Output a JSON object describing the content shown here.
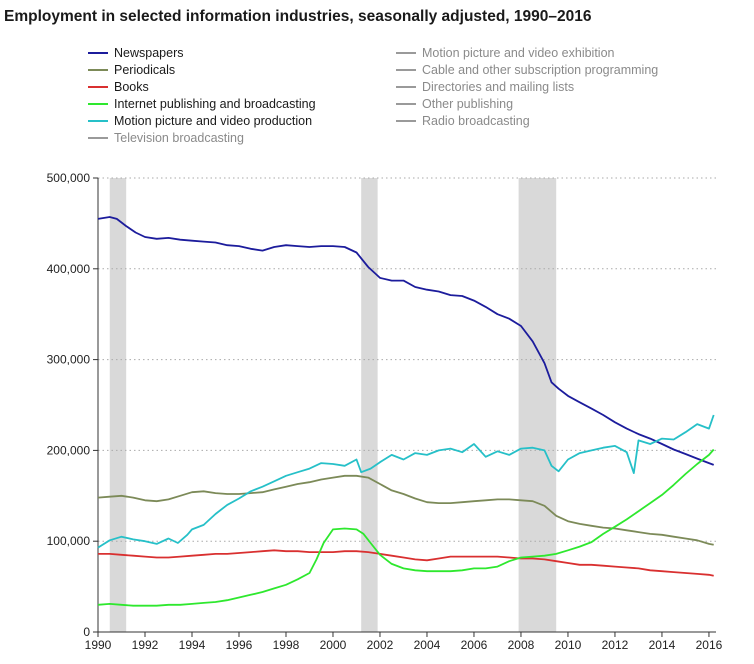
{
  "chart_data": {
    "type": "line",
    "title": "Employment in selected information industries, seasonally adjusted, 1990–2016",
    "xlabel": "",
    "ylabel": "",
    "xlim": [
      1990,
      2016.3
    ],
    "ylim": [
      0,
      500000
    ],
    "x_ticks": [
      1990,
      1992,
      1994,
      1996,
      1998,
      2000,
      2002,
      2004,
      2006,
      2008,
      2010,
      2012,
      2014,
      2016
    ],
    "y_ticks": [
      0,
      100000,
      200000,
      300000,
      400000,
      500000
    ],
    "y_tick_labels": [
      "0",
      "100,000",
      "200,000",
      "300,000",
      "400,000",
      "500,000"
    ],
    "grid": "horizontal dotted",
    "legend_position": "top",
    "recession_shading": [
      [
        1990.5,
        1991.2
      ],
      [
        2001.2,
        2001.9
      ],
      [
        2007.9,
        2009.5
      ]
    ],
    "series": [
      {
        "name": "Newspapers",
        "color": "#1c1c9c",
        "points": [
          [
            1990,
            455000
          ],
          [
            1990.5,
            457000
          ],
          [
            1990.8,
            455000
          ],
          [
            1991.2,
            447000
          ],
          [
            1991.6,
            440000
          ],
          [
            1992,
            435000
          ],
          [
            1992.5,
            433000
          ],
          [
            1993,
            434000
          ],
          [
            1993.5,
            432000
          ],
          [
            1994,
            431000
          ],
          [
            1994.5,
            430000
          ],
          [
            1995,
            429000
          ],
          [
            1995.5,
            426000
          ],
          [
            1996,
            425000
          ],
          [
            1996.5,
            422000
          ],
          [
            1997,
            420000
          ],
          [
            1997.5,
            424000
          ],
          [
            1998,
            426000
          ],
          [
            1998.5,
            425000
          ],
          [
            1999,
            424000
          ],
          [
            1999.5,
            425000
          ],
          [
            2000,
            425000
          ],
          [
            2000.5,
            424000
          ],
          [
            2001,
            418000
          ],
          [
            2001.5,
            402000
          ],
          [
            2002,
            390000
          ],
          [
            2002.5,
            387000
          ],
          [
            2003,
            387000
          ],
          [
            2003.5,
            380000
          ],
          [
            2004,
            377000
          ],
          [
            2004.5,
            375000
          ],
          [
            2005,
            371000
          ],
          [
            2005.5,
            370000
          ],
          [
            2006,
            365000
          ],
          [
            2006.5,
            358000
          ],
          [
            2007,
            350000
          ],
          [
            2007.5,
            345000
          ],
          [
            2008,
            337000
          ],
          [
            2008.5,
            320000
          ],
          [
            2009,
            296000
          ],
          [
            2009.3,
            275000
          ],
          [
            2009.6,
            268000
          ],
          [
            2010,
            260000
          ],
          [
            2010.5,
            253000
          ],
          [
            2011,
            246000
          ],
          [
            2011.5,
            239000
          ],
          [
            2012,
            231000
          ],
          [
            2012.5,
            224000
          ],
          [
            2013,
            218000
          ],
          [
            2013.5,
            213000
          ],
          [
            2014,
            207000
          ],
          [
            2014.5,
            201000
          ],
          [
            2015,
            196000
          ],
          [
            2015.5,
            191000
          ],
          [
            2016,
            186000
          ],
          [
            2016.2,
            184000
          ]
        ]
      },
      {
        "name": "Periodicals",
        "color": "#7c8a58",
        "points": [
          [
            1990,
            148000
          ],
          [
            1990.5,
            149000
          ],
          [
            1991,
            150000
          ],
          [
            1991.5,
            148000
          ],
          [
            1992,
            145000
          ],
          [
            1992.5,
            144000
          ],
          [
            1993,
            146000
          ],
          [
            1993.5,
            150000
          ],
          [
            1994,
            154000
          ],
          [
            1994.5,
            155000
          ],
          [
            1995,
            153000
          ],
          [
            1995.5,
            152000
          ],
          [
            1996,
            152000
          ],
          [
            1996.5,
            153000
          ],
          [
            1997,
            154000
          ],
          [
            1997.5,
            157000
          ],
          [
            1998,
            160000
          ],
          [
            1998.5,
            163000
          ],
          [
            1999,
            165000
          ],
          [
            1999.5,
            168000
          ],
          [
            2000,
            170000
          ],
          [
            2000.5,
            172000
          ],
          [
            2001,
            172000
          ],
          [
            2001.5,
            170000
          ],
          [
            2002,
            163000
          ],
          [
            2002.5,
            156000
          ],
          [
            2003,
            152000
          ],
          [
            2003.5,
            147000
          ],
          [
            2004,
            143000
          ],
          [
            2004.5,
            142000
          ],
          [
            2005,
            142000
          ],
          [
            2005.5,
            143000
          ],
          [
            2006,
            144000
          ],
          [
            2006.5,
            145000
          ],
          [
            2007,
            146000
          ],
          [
            2007.5,
            146000
          ],
          [
            2008,
            145000
          ],
          [
            2008.5,
            144000
          ],
          [
            2009,
            139000
          ],
          [
            2009.5,
            128000
          ],
          [
            2010,
            122000
          ],
          [
            2010.5,
            119000
          ],
          [
            2011,
            117000
          ],
          [
            2011.5,
            115000
          ],
          [
            2012,
            114000
          ],
          [
            2012.5,
            112000
          ],
          [
            2013,
            110000
          ],
          [
            2013.5,
            108000
          ],
          [
            2014,
            107000
          ],
          [
            2014.5,
            105000
          ],
          [
            2015,
            103000
          ],
          [
            2015.5,
            101000
          ],
          [
            2016,
            97000
          ],
          [
            2016.2,
            96000
          ]
        ]
      },
      {
        "name": "Books",
        "color": "#d93030",
        "points": [
          [
            1990,
            86000
          ],
          [
            1990.5,
            86000
          ],
          [
            1991,
            85000
          ],
          [
            1991.5,
            84000
          ],
          [
            1992,
            83000
          ],
          [
            1992.5,
            82000
          ],
          [
            1993,
            82000
          ],
          [
            1993.5,
            83000
          ],
          [
            1994,
            84000
          ],
          [
            1994.5,
            85000
          ],
          [
            1995,
            86000
          ],
          [
            1995.5,
            86000
          ],
          [
            1996,
            87000
          ],
          [
            1996.5,
            88000
          ],
          [
            1997,
            89000
          ],
          [
            1997.5,
            90000
          ],
          [
            1998,
            89000
          ],
          [
            1998.5,
            89000
          ],
          [
            1999,
            88000
          ],
          [
            1999.5,
            88000
          ],
          [
            2000,
            88000
          ],
          [
            2000.5,
            89000
          ],
          [
            2001,
            89000
          ],
          [
            2001.5,
            88000
          ],
          [
            2002,
            86000
          ],
          [
            2002.5,
            84000
          ],
          [
            2003,
            82000
          ],
          [
            2003.5,
            80000
          ],
          [
            2004,
            79000
          ],
          [
            2004.5,
            81000
          ],
          [
            2005,
            83000
          ],
          [
            2005.5,
            83000
          ],
          [
            2006,
            83000
          ],
          [
            2006.5,
            83000
          ],
          [
            2007,
            83000
          ],
          [
            2007.5,
            82000
          ],
          [
            2008,
            81000
          ],
          [
            2008.5,
            81000
          ],
          [
            2009,
            80000
          ],
          [
            2009.5,
            78000
          ],
          [
            2010,
            76000
          ],
          [
            2010.5,
            74000
          ],
          [
            2011,
            74000
          ],
          [
            2011.5,
            73000
          ],
          [
            2012,
            72000
          ],
          [
            2012.5,
            71000
          ],
          [
            2013,
            70000
          ],
          [
            2013.5,
            68000
          ],
          [
            2014,
            67000
          ],
          [
            2014.5,
            66000
          ],
          [
            2015,
            65000
          ],
          [
            2015.5,
            64000
          ],
          [
            2016,
            63000
          ],
          [
            2016.2,
            62000
          ]
        ]
      },
      {
        "name": "Internet publishing and broadcasting",
        "color": "#2ee82e",
        "points": [
          [
            1990,
            30000
          ],
          [
            1990.5,
            31000
          ],
          [
            1991,
            30000
          ],
          [
            1991.5,
            29000
          ],
          [
            1992,
            29000
          ],
          [
            1992.5,
            29000
          ],
          [
            1993,
            30000
          ],
          [
            1993.5,
            30000
          ],
          [
            1994,
            31000
          ],
          [
            1994.5,
            32000
          ],
          [
            1995,
            33000
          ],
          [
            1995.5,
            35000
          ],
          [
            1996,
            38000
          ],
          [
            1996.5,
            41000
          ],
          [
            1997,
            44000
          ],
          [
            1997.5,
            48000
          ],
          [
            1998,
            52000
          ],
          [
            1998.5,
            58000
          ],
          [
            1999,
            65000
          ],
          [
            1999.3,
            80000
          ],
          [
            1999.6,
            98000
          ],
          [
            2000,
            113000
          ],
          [
            2000.5,
            114000
          ],
          [
            2001,
            113000
          ],
          [
            2001.3,
            108000
          ],
          [
            2001.6,
            98000
          ],
          [
            2002,
            85000
          ],
          [
            2002.5,
            75000
          ],
          [
            2003,
            70000
          ],
          [
            2003.5,
            68000
          ],
          [
            2004,
            67000
          ],
          [
            2004.5,
            67000
          ],
          [
            2005,
            67000
          ],
          [
            2005.5,
            68000
          ],
          [
            2006,
            70000
          ],
          [
            2006.5,
            70000
          ],
          [
            2007,
            72000
          ],
          [
            2007.5,
            78000
          ],
          [
            2008,
            82000
          ],
          [
            2008.5,
            83000
          ],
          [
            2009,
            84000
          ],
          [
            2009.5,
            86000
          ],
          [
            2010,
            90000
          ],
          [
            2010.5,
            94000
          ],
          [
            2011,
            99000
          ],
          [
            2011.5,
            108000
          ],
          [
            2012,
            116000
          ],
          [
            2012.5,
            124000
          ],
          [
            2013,
            133000
          ],
          [
            2013.5,
            142000
          ],
          [
            2014,
            151000
          ],
          [
            2014.5,
            162000
          ],
          [
            2015,
            174000
          ],
          [
            2015.5,
            185000
          ],
          [
            2016,
            195000
          ],
          [
            2016.2,
            201000
          ]
        ]
      },
      {
        "name": "Motion picture and video production",
        "color": "#26c0c8",
        "points": [
          [
            1990,
            93000
          ],
          [
            1990.5,
            101000
          ],
          [
            1991,
            105000
          ],
          [
            1991.5,
            102000
          ],
          [
            1992,
            100000
          ],
          [
            1992.5,
            97000
          ],
          [
            1993,
            103000
          ],
          [
            1993.4,
            98000
          ],
          [
            1993.8,
            107000
          ],
          [
            1994,
            113000
          ],
          [
            1994.5,
            118000
          ],
          [
            1995,
            130000
          ],
          [
            1995.5,
            140000
          ],
          [
            1996,
            147000
          ],
          [
            1996.5,
            155000
          ],
          [
            1997,
            160000
          ],
          [
            1997.5,
            166000
          ],
          [
            1998,
            172000
          ],
          [
            1998.5,
            176000
          ],
          [
            1999,
            180000
          ],
          [
            1999.5,
            186000
          ],
          [
            2000,
            185000
          ],
          [
            2000.5,
            183000
          ],
          [
            2001,
            190000
          ],
          [
            2001.2,
            176000
          ],
          [
            2001.6,
            180000
          ],
          [
            2002,
            187000
          ],
          [
            2002.5,
            195000
          ],
          [
            2003,
            190000
          ],
          [
            2003.5,
            197000
          ],
          [
            2004,
            195000
          ],
          [
            2004.5,
            200000
          ],
          [
            2005,
            202000
          ],
          [
            2005.5,
            198000
          ],
          [
            2006,
            207000
          ],
          [
            2006.5,
            193000
          ],
          [
            2007,
            199000
          ],
          [
            2007.5,
            195000
          ],
          [
            2008,
            202000
          ],
          [
            2008.5,
            203000
          ],
          [
            2009,
            200000
          ],
          [
            2009.3,
            183000
          ],
          [
            2009.6,
            177000
          ],
          [
            2010,
            190000
          ],
          [
            2010.5,
            197000
          ],
          [
            2011,
            200000
          ],
          [
            2011.5,
            203000
          ],
          [
            2012,
            205000
          ],
          [
            2012.5,
            198000
          ],
          [
            2012.8,
            175000
          ],
          [
            2013,
            211000
          ],
          [
            2013.5,
            207000
          ],
          [
            2014,
            213000
          ],
          [
            2014.5,
            212000
          ],
          [
            2015,
            220000
          ],
          [
            2015.5,
            229000
          ],
          [
            2016,
            224000
          ],
          [
            2016.2,
            239000
          ]
        ]
      },
      {
        "name": "Television broadcasting",
        "color": "#9a9a9a",
        "points": []
      },
      {
        "name": "Motion picture and video exhibition",
        "color": "#9a9a9a",
        "points": []
      },
      {
        "name": "Cable and other subscription programming",
        "color": "#9a9a9a",
        "points": []
      },
      {
        "name": "Directories and mailing lists",
        "color": "#9a9a9a",
        "points": []
      },
      {
        "name": "Other publishing",
        "color": "#9a9a9a",
        "points": []
      },
      {
        "name": "Radio broadcasting",
        "color": "#9a9a9a",
        "points": []
      }
    ]
  }
}
